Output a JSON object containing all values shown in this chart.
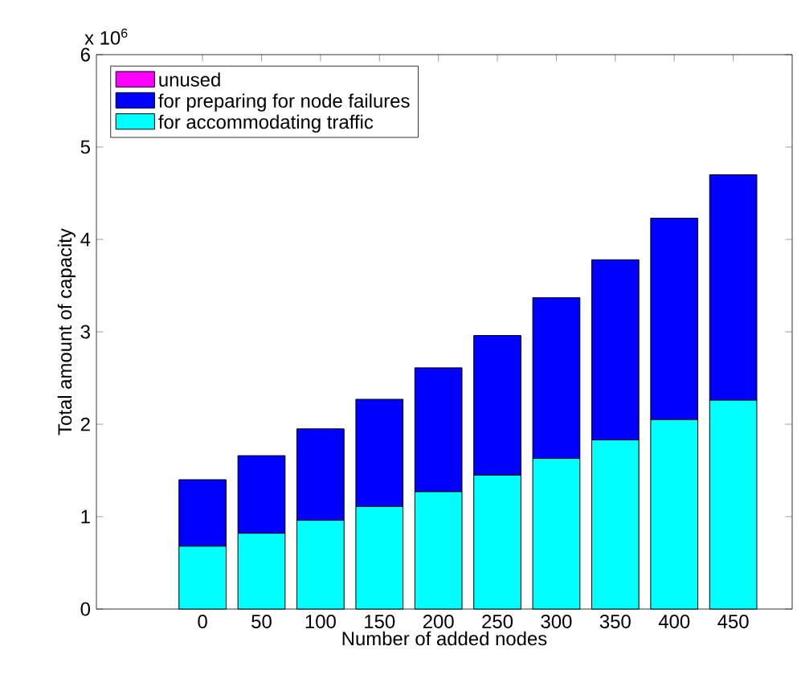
{
  "chart_data": {
    "type": "bar",
    "stacked": true,
    "xlabel": "Number of added nodes",
    "ylabel": "Total amount of capacity",
    "annotations": [
      "x 10$^{6}$"
    ],
    "x": [
      0,
      50,
      100,
      150,
      200,
      250,
      300,
      350,
      400,
      450
    ],
    "xlim": [
      -90,
      500
    ],
    "xticks": [
      0,
      50,
      100,
      150,
      200,
      250,
      300,
      350,
      400,
      450
    ],
    "ylim": [
      0,
      6
    ],
    "yticks": [
      0,
      1,
      2,
      3,
      4,
      5,
      6
    ],
    "series": [
      {
        "name": "for accommodating traffic",
        "color": "#00ffff",
        "values": [
          0.68,
          0.82,
          0.96,
          1.11,
          1.27,
          1.45,
          1.63,
          1.83,
          2.05,
          2.26
        ]
      },
      {
        "name": "for preparing for node failures",
        "color": "#0000ff",
        "values": [
          0.72,
          0.84,
          0.99,
          1.16,
          1.34,
          1.51,
          1.74,
          1.95,
          2.18,
          2.44
        ]
      },
      {
        "name": "unused",
        "color": "#ff00ff",
        "values": [
          0,
          0,
          0,
          0,
          0,
          0,
          0,
          0,
          0,
          0
        ]
      }
    ],
    "legend": "top left",
    "grid": false
  }
}
